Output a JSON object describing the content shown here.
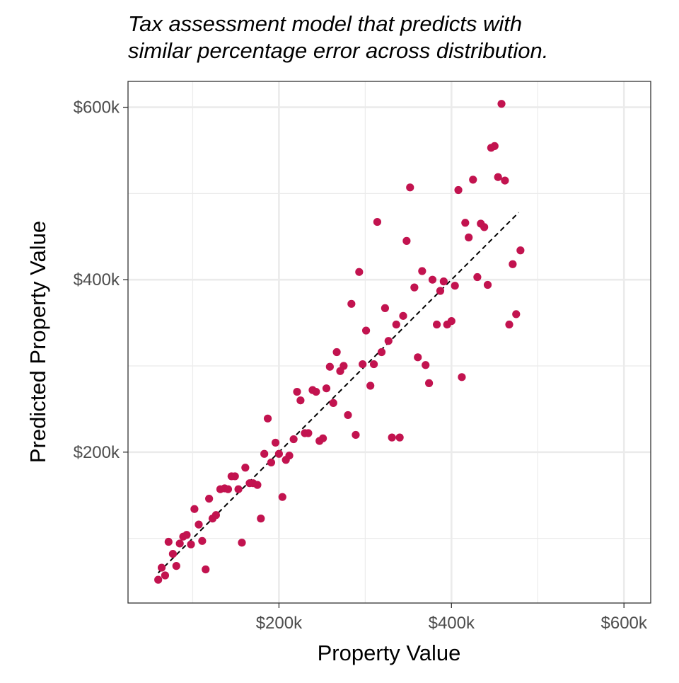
{
  "chart_data": {
    "type": "scatter",
    "title_lines": [
      "Tax assessment model that predicts with",
      "similar percentage error across distribution."
    ],
    "xlabel": "Property Value",
    "ylabel": "Predicted Property Value",
    "xlim": [
      25,
      631
    ],
    "ylim": [
      25,
      630
    ],
    "units": "thousands of dollars",
    "x_ticks": [
      {
        "value": 200,
        "label": "$200k"
      },
      {
        "value": 400,
        "label": "$400k"
      },
      {
        "value": 600,
        "label": "$600k"
      }
    ],
    "y_ticks": [
      {
        "value": 200,
        "label": "$200k"
      },
      {
        "value": 400,
        "label": "$400k"
      },
      {
        "value": 600,
        "label": "$600k"
      }
    ],
    "minor_grid": [
      100,
      300,
      500
    ],
    "grid": true,
    "reference_line": {
      "style": "dashed",
      "from": [
        60,
        60
      ],
      "to": [
        478,
        478
      ]
    },
    "point_color": "#C2134F",
    "points": [
      [
        60,
        52
      ],
      [
        64,
        66
      ],
      [
        68,
        57
      ],
      [
        72,
        96
      ],
      [
        77,
        82
      ],
      [
        81,
        68
      ],
      [
        85,
        94
      ],
      [
        89,
        102
      ],
      [
        93,
        104
      ],
      [
        98,
        93
      ],
      [
        102,
        134
      ],
      [
        107,
        116
      ],
      [
        111,
        97
      ],
      [
        115,
        64
      ],
      [
        119,
        146
      ],
      [
        123,
        123
      ],
      [
        127,
        127
      ],
      [
        132,
        157
      ],
      [
        137,
        158
      ],
      [
        141,
        157
      ],
      [
        145,
        172
      ],
      [
        149,
        172
      ],
      [
        153,
        157
      ],
      [
        157,
        95
      ],
      [
        161,
        182
      ],
      [
        166,
        164
      ],
      [
        170,
        164
      ],
      [
        175,
        162
      ],
      [
        179,
        123
      ],
      [
        183,
        198
      ],
      [
        187,
        239
      ],
      [
        191,
        188
      ],
      [
        196,
        211
      ],
      [
        200,
        198
      ],
      [
        204,
        148
      ],
      [
        208,
        191
      ],
      [
        212,
        196
      ],
      [
        217,
        215
      ],
      [
        221,
        270
      ],
      [
        225,
        260
      ],
      [
        230,
        222
      ],
      [
        234,
        222
      ],
      [
        239,
        272
      ],
      [
        243,
        270
      ],
      [
        247,
        213
      ],
      [
        251,
        216
      ],
      [
        255,
        274
      ],
      [
        259,
        299
      ],
      [
        263,
        257
      ],
      [
        267,
        316
      ],
      [
        271,
        294
      ],
      [
        275,
        300
      ],
      [
        280,
        243
      ],
      [
        284,
        372
      ],
      [
        289,
        220
      ],
      [
        293,
        409
      ],
      [
        297,
        302
      ],
      [
        301,
        341
      ],
      [
        306,
        277
      ],
      [
        310,
        302
      ],
      [
        314,
        467
      ],
      [
        319,
        316
      ],
      [
        323,
        367
      ],
      [
        327,
        329
      ],
      [
        331,
        217
      ],
      [
        336,
        348
      ],
      [
        340,
        217
      ],
      [
        344,
        358
      ],
      [
        348,
        445
      ],
      [
        352,
        507
      ],
      [
        357,
        391
      ],
      [
        361,
        310
      ],
      [
        366,
        410
      ],
      [
        370,
        301
      ],
      [
        374,
        280
      ],
      [
        378,
        400
      ],
      [
        383,
        348
      ],
      [
        387,
        387
      ],
      [
        391,
        398
      ],
      [
        395,
        348
      ],
      [
        400,
        352
      ],
      [
        404,
        393
      ],
      [
        408,
        504
      ],
      [
        412,
        287
      ],
      [
        416,
        466
      ],
      [
        420,
        449
      ],
      [
        425,
        516
      ],
      [
        430,
        403
      ],
      [
        434,
        465
      ],
      [
        438,
        461
      ],
      [
        442,
        394
      ],
      [
        446,
        553
      ],
      [
        450,
        555
      ],
      [
        454,
        519
      ],
      [
        458,
        604
      ],
      [
        462,
        515
      ],
      [
        467,
        348
      ],
      [
        471,
        418
      ],
      [
        475,
        360
      ],
      [
        480,
        434
      ]
    ]
  }
}
